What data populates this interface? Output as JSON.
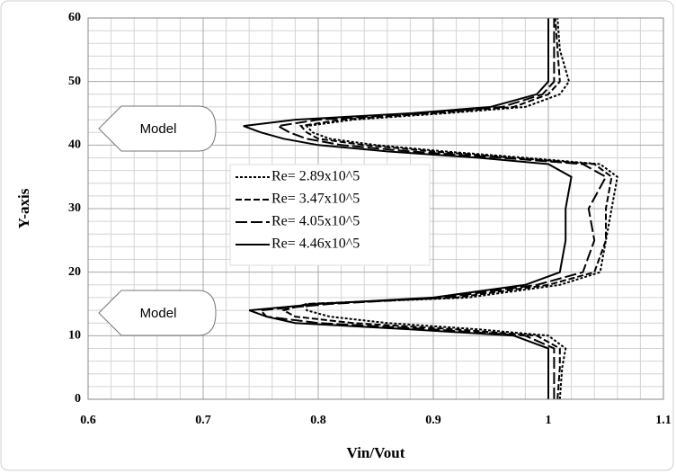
{
  "chart_data": {
    "type": "line",
    "xlabel": "Vin/Vout",
    "ylabel": "Y-axis",
    "xlim": [
      0.6,
      1.1
    ],
    "xticks": [
      0.6,
      0.7,
      0.8,
      0.9,
      1,
      1.1
    ],
    "ylim": [
      0,
      60
    ],
    "yticks": [
      0,
      10,
      20,
      30,
      40,
      50,
      60
    ],
    "grid": true,
    "annotations": [
      "Model",
      "Model"
    ],
    "series": [
      {
        "name": "Re= 2.89x10^5",
        "color": "#000000",
        "dash": "3,2",
        "x": [
          1.01,
          1.012,
          1.015,
          1.0,
          0.94,
          0.86,
          0.81,
          0.79,
          0.79,
          0.93,
          1.01,
          1.045,
          1.05,
          1.055,
          1.06,
          1.045,
          0.98,
          0.91,
          0.85,
          0.81,
          0.795,
          0.79,
          0.83,
          0.91,
          0.98,
          1.01,
          1.018,
          1.01,
          1.008
        ],
        "values": [
          0,
          5,
          8,
          10,
          11,
          12,
          13,
          14,
          15,
          16,
          18,
          20,
          25,
          30,
          35,
          37,
          38,
          39,
          40,
          41,
          42,
          43,
          44,
          45,
          46,
          48,
          50,
          55,
          60
        ]
      },
      {
        "name": "Re= 3.47x10^5",
        "color": "#000000",
        "dash": "7,3",
        "x": [
          1.008,
          1.01,
          1.01,
          0.99,
          0.92,
          0.83,
          0.78,
          0.77,
          0.79,
          0.92,
          1.0,
          1.04,
          1.05,
          1.05,
          1.055,
          1.04,
          0.97,
          0.9,
          0.84,
          0.8,
          0.79,
          0.785,
          0.82,
          0.9,
          0.97,
          1.0,
          1.01,
          1.008,
          1.006
        ],
        "values": [
          0,
          5,
          8,
          10,
          11,
          12,
          13,
          14,
          15,
          16,
          18,
          20,
          25,
          30,
          35,
          37,
          38,
          39,
          40,
          41,
          42,
          43,
          44,
          45,
          46,
          48,
          50,
          55,
          60
        ]
      },
      {
        "name": "Re= 4.05x10^5",
        "color": "#000000",
        "dash": "13,4",
        "x": [
          1.005,
          1.005,
          1.005,
          0.98,
          0.9,
          0.8,
          0.755,
          0.75,
          0.81,
          0.91,
          0.99,
          1.03,
          1.04,
          1.035,
          1.05,
          1.03,
          0.96,
          0.88,
          0.82,
          0.79,
          0.775,
          0.765,
          0.8,
          0.89,
          0.96,
          0.995,
          1.005,
          1.005,
          1.005
        ],
        "values": [
          0,
          5,
          8,
          10,
          11,
          12,
          13,
          14,
          15,
          16,
          18,
          20,
          25,
          30,
          35,
          37,
          38,
          39,
          40,
          41,
          42,
          43,
          44,
          45,
          46,
          48,
          50,
          55,
          60
        ]
      },
      {
        "name": "Re= 4.46x10^5",
        "color": "#000000",
        "dash": "none",
        "x": [
          1.0,
          1.0,
          1.0,
          0.97,
          0.88,
          0.78,
          0.755,
          0.74,
          0.8,
          0.9,
          0.98,
          1.01,
          1.015,
          1.015,
          1.02,
          1.0,
          0.94,
          0.86,
          0.8,
          0.77,
          0.75,
          0.735,
          0.78,
          0.88,
          0.95,
          0.99,
          1.0,
          1.0,
          1.0
        ],
        "values": [
          0,
          5,
          8,
          10,
          11,
          12,
          13,
          14,
          15,
          16,
          18,
          20,
          25,
          30,
          35,
          37,
          38,
          39,
          40,
          41,
          42,
          43,
          44,
          45,
          46,
          48,
          50,
          55,
          60
        ]
      }
    ]
  }
}
